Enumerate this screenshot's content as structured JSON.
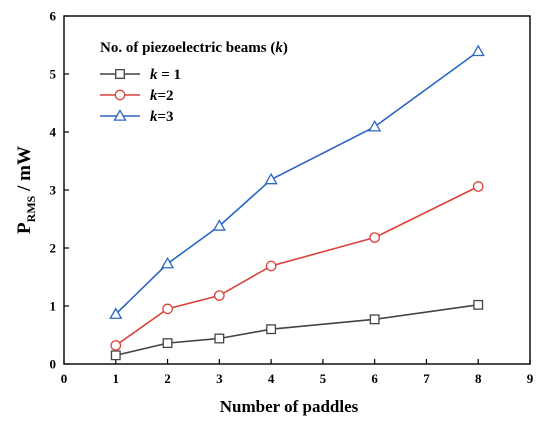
{
  "chart_data": {
    "type": "line",
    "title": "",
    "xlabel": "Number of paddles",
    "ylabel": {
      "main": "P",
      "sub": "RMS",
      "unit": " / mW"
    },
    "xlim": [
      0,
      9
    ],
    "ylim": [
      0,
      6
    ],
    "xticks": [
      0,
      1,
      2,
      3,
      4,
      5,
      6,
      7,
      8,
      9
    ],
    "yticks": [
      0,
      1,
      2,
      3,
      4,
      5,
      6
    ],
    "x": [
      1,
      2,
      3,
      4,
      6,
      8
    ],
    "legend_title": {
      "text": "No. of piezoelectric beams (",
      "var": "k",
      "close": ")"
    },
    "legend_position": "top-left",
    "grid": false,
    "series": [
      {
        "var": "k",
        "suffix": " = 1",
        "marker": "square",
        "color": "#444444",
        "values": [
          0.15,
          0.36,
          0.44,
          0.6,
          0.77,
          1.02
        ]
      },
      {
        "var": "k",
        "suffix": "=2",
        "marker": "circle",
        "color": "#d9433a",
        "values": [
          0.32,
          0.95,
          1.18,
          1.69,
          2.18,
          3.06
        ]
      },
      {
        "var": "k",
        "suffix": "=3",
        "marker": "triangle",
        "color": "#2a66c4",
        "values": [
          0.86,
          1.73,
          2.38,
          3.18,
          4.09,
          5.39
        ]
      }
    ]
  }
}
